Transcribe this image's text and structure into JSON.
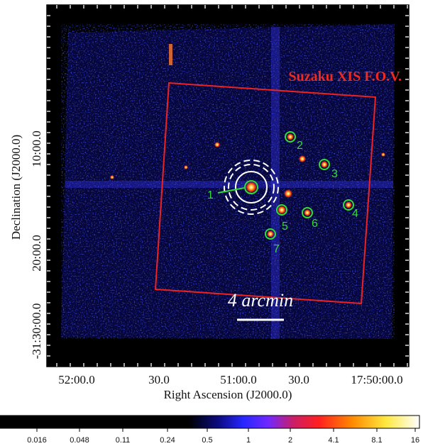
{
  "axes": {
    "x_label": "Right Ascension (J2000.0)",
    "y_label": "Declination (J2000.0)",
    "x_ticks": [
      "52:00.0",
      "30.0",
      "51:00.0",
      "30.0",
      "17:50:00.0"
    ],
    "y_ticks": [
      "10:00.0",
      "20:00.0",
      "-31:30:00.0"
    ]
  },
  "annotations": {
    "fov_label": "Suzaku XIS  F.O.V.",
    "scale_label": "4 arcmin"
  },
  "sources": [
    {
      "label": "1"
    },
    {
      "label": "2"
    },
    {
      "label": "3"
    },
    {
      "label": "4"
    },
    {
      "label": "5"
    },
    {
      "label": "6"
    },
    {
      "label": "7"
    }
  ],
  "colorbar": {
    "ticks": [
      "0.016",
      "0.048",
      "0.11",
      "0.24",
      "0.5",
      "1",
      "2",
      "4.1",
      "8.1",
      "16"
    ],
    "colormap": [
      "#000000",
      "#000000",
      "#0a0a7a",
      "#2a2aff",
      "#7a2aff",
      "#d01860",
      "#ff2020",
      "#ff8a00",
      "#ffee40",
      "#ffffff"
    ]
  },
  "colors": {
    "fov_box": "#ee2222",
    "source_circle": "#33dd33",
    "background_ring": "#ffffff"
  }
}
